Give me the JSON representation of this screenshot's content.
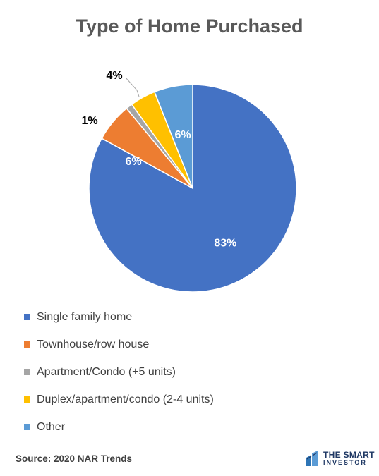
{
  "chart_data": {
    "type": "pie",
    "title": "Type of Home Purchased",
    "categories": [
      "Single family home",
      "Townhouse/row house",
      "Apartment/Condo (+5 units)",
      "Duplex/apartment/condo (2-4 units)",
      "Other"
    ],
    "values": [
      83,
      6,
      1,
      4,
      6
    ],
    "data_labels": [
      "83%",
      "6%",
      "1%",
      "4%",
      "6%"
    ],
    "colors": [
      "#4472c4",
      "#ed7d31",
      "#a5a5a5",
      "#ffc000",
      "#5b9bd5"
    ],
    "legend_position": "bottom"
  },
  "footer": {
    "source": "Source: 2020 NAR Trends",
    "logo_line1": "THE SMART",
    "logo_line2": "INVESTOR"
  }
}
